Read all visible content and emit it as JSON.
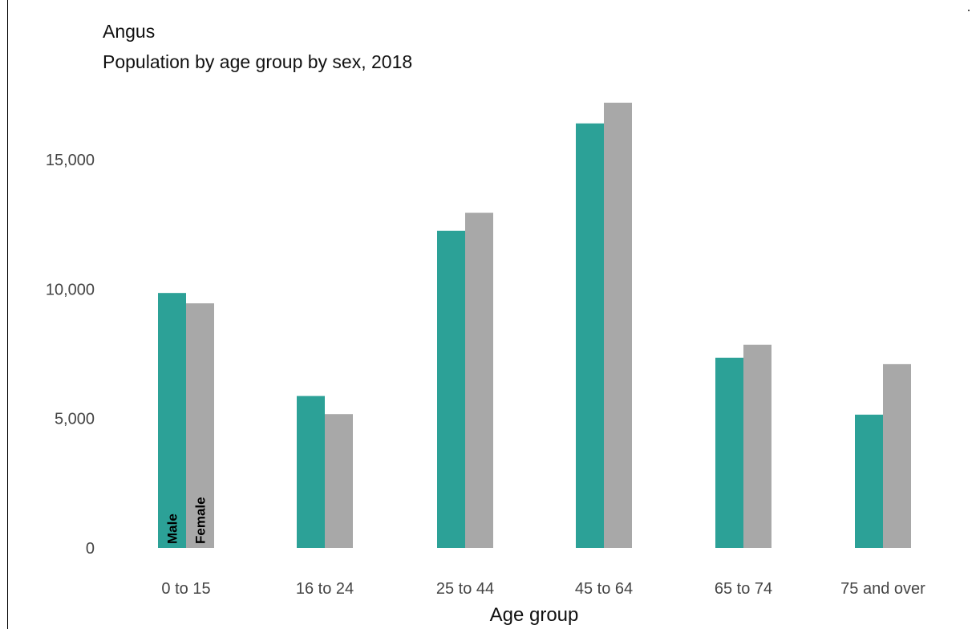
{
  "chart_data": {
    "type": "bar",
    "title": "Angus",
    "subtitle": "Population by age group by sex, 2018",
    "xlabel": "Age group",
    "ylabel": "",
    "categories": [
      "0 to 15",
      "16 to 24",
      "25 to 44",
      "45 to 64",
      "65 to 74",
      "75 and over"
    ],
    "series": [
      {
        "name": "Male",
        "color": "#2ca197",
        "values": [
          9850,
          5870,
          12250,
          16400,
          7350,
          5150
        ]
      },
      {
        "name": "Female",
        "color": "#a8a8a8",
        "values": [
          9450,
          5170,
          12950,
          17200,
          7850,
          7100
        ]
      }
    ],
    "ylim": [
      0,
      17200
    ],
    "yticks": [
      0,
      5000,
      10000,
      15000
    ],
    "ytick_labels": [
      "0",
      "5,000",
      "10,000",
      "15,000"
    ],
    "grid": false,
    "legend": "labels inside first bar group"
  }
}
